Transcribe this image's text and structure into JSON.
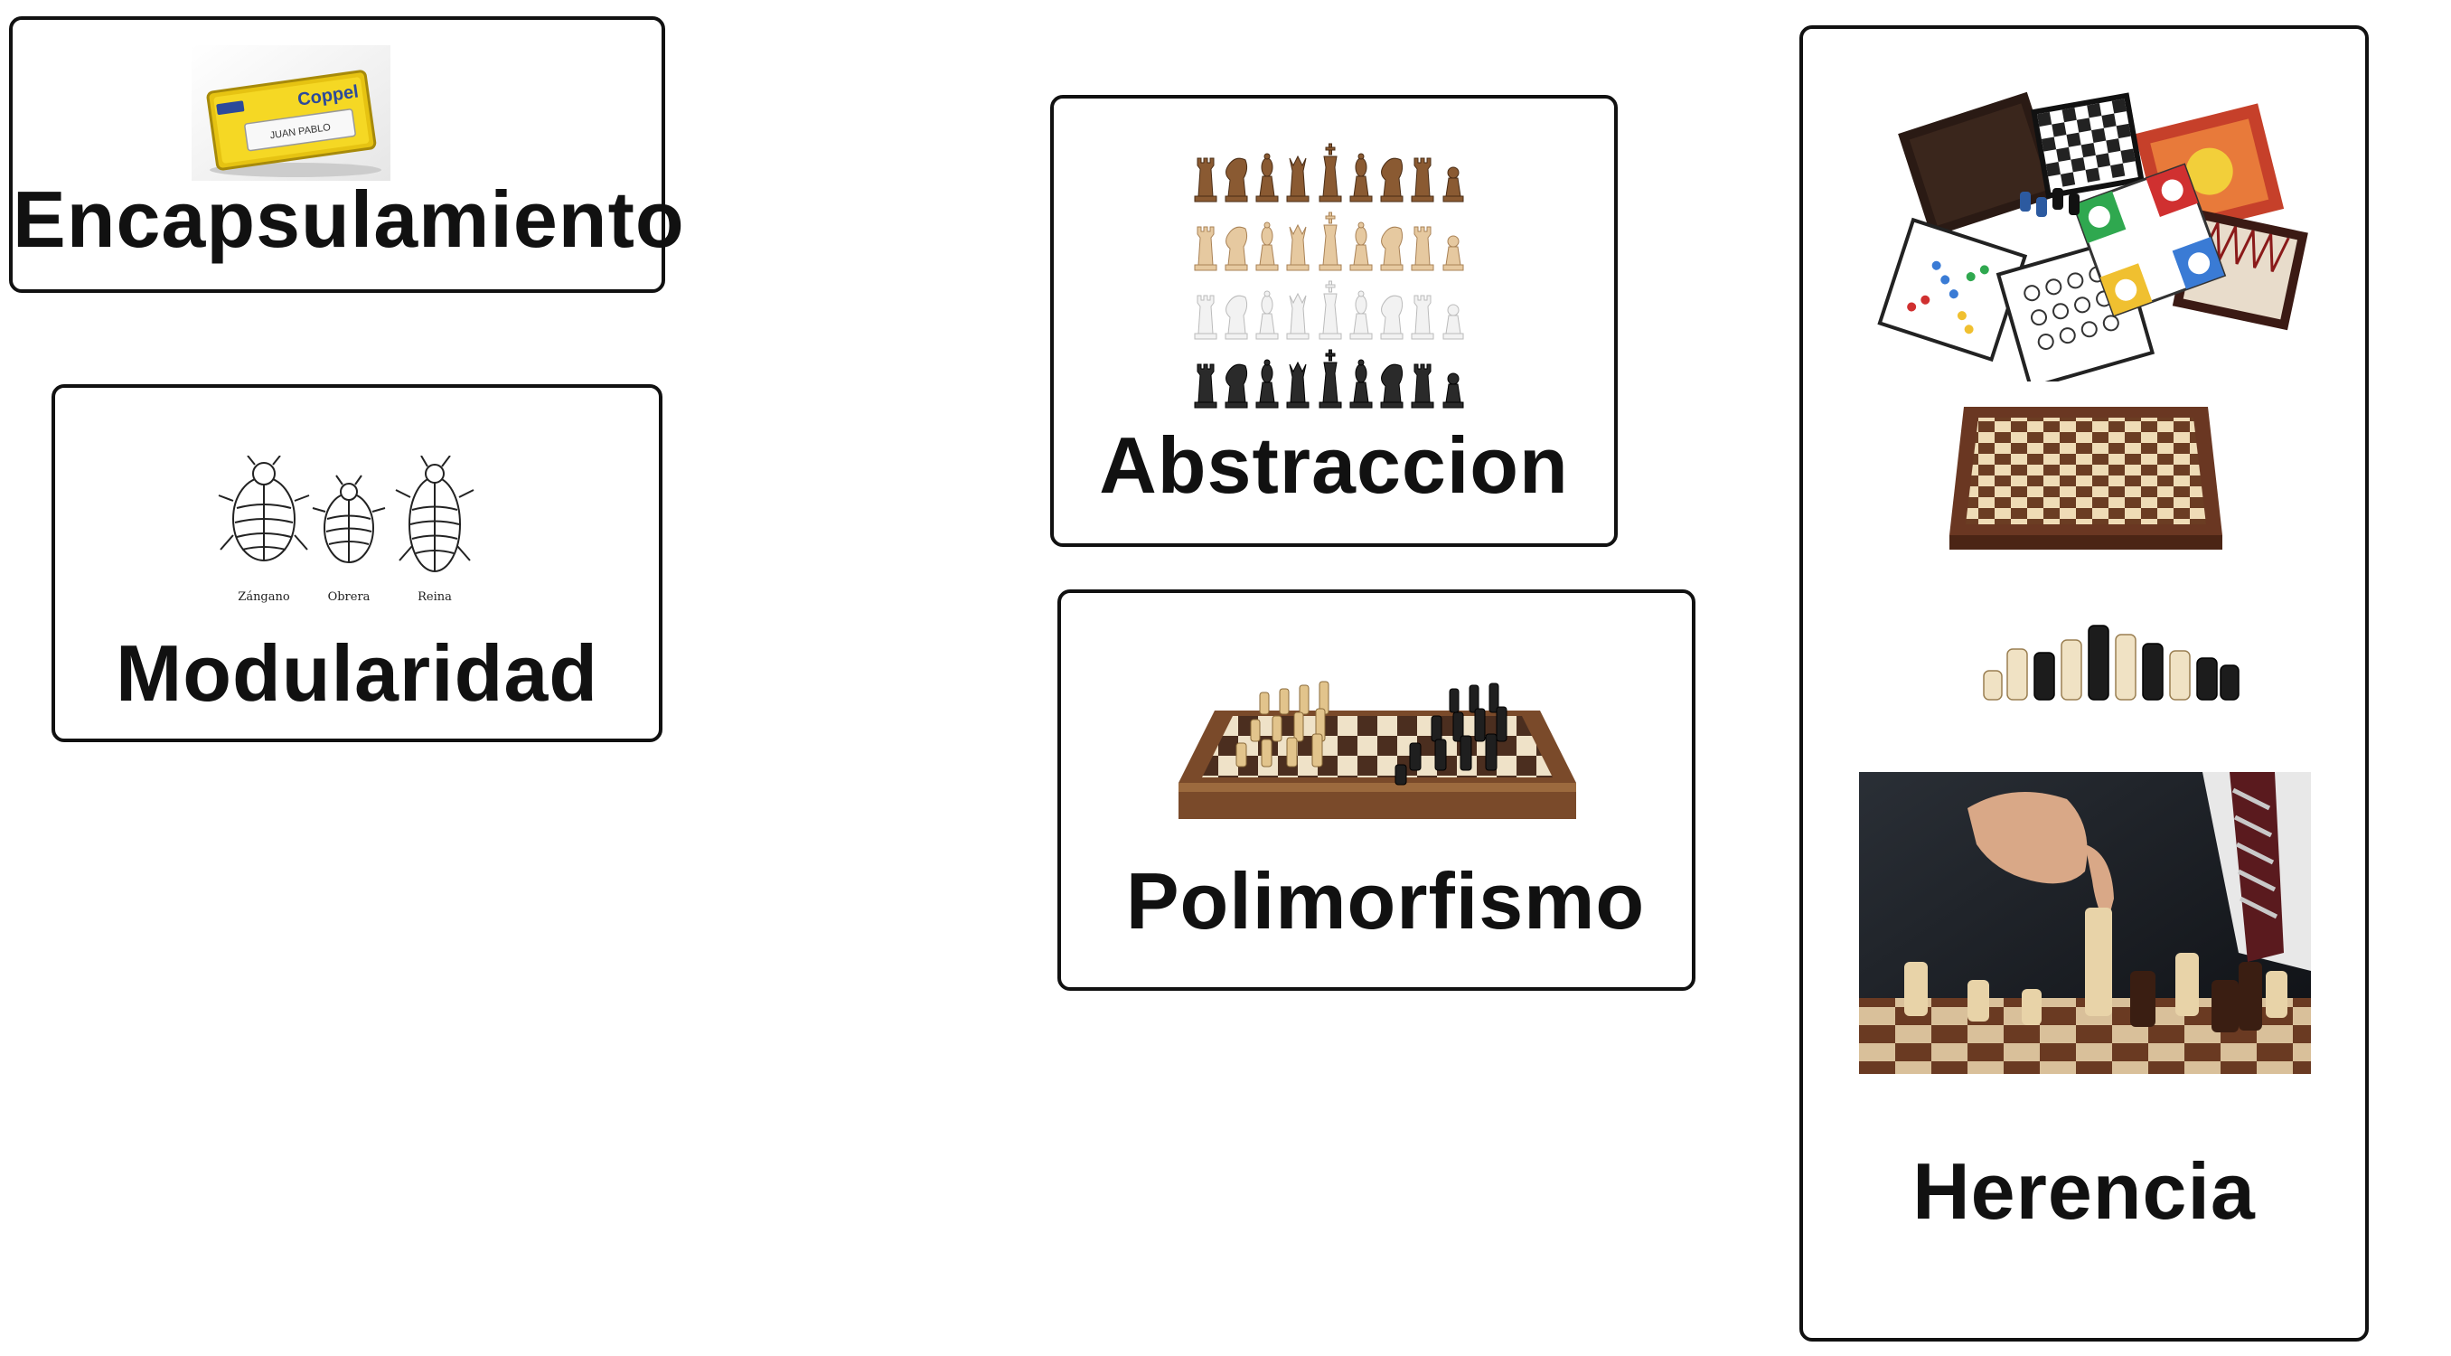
{
  "cards": {
    "encapsulamiento": {
      "title": "Encapsulamiento",
      "badge_brand": "Coppel",
      "badge_name": "JUAN PABLO"
    },
    "modularidad": {
      "title": "Modularidad",
      "bee_labels": [
        "Zángano",
        "Obrera",
        "Reina"
      ]
    },
    "abstraccion": {
      "title": "Abstraccion"
    },
    "polimorfismo": {
      "title": "Polimorfismo"
    },
    "herencia": {
      "title": "Herencia"
    }
  },
  "colors": {
    "border": "#111111",
    "badge_yellow": "#f2d21b",
    "wood_dark": "#5a3420",
    "wood_light": "#e8d2a8"
  }
}
